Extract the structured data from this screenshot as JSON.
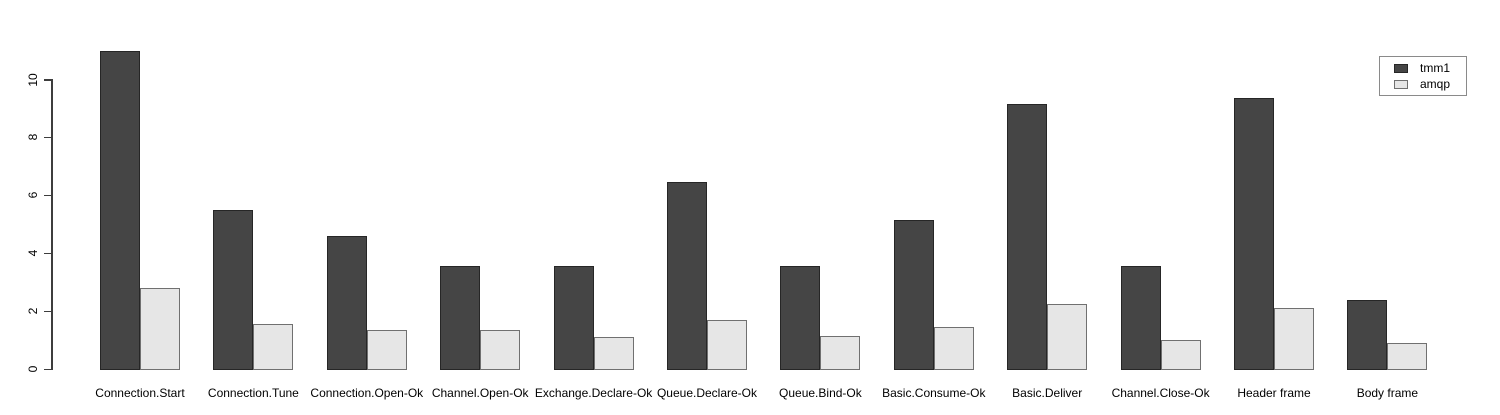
{
  "chart_data": {
    "type": "bar",
    "title": "",
    "xlabel": "",
    "ylabel": "",
    "categories": [
      "Connection.Start",
      "Connection.Tune",
      "Connection.Open-Ok",
      "Channel.Open-Ok",
      "Exchange.Declare-Ok",
      "Queue.Declare-Ok",
      "Queue.Bind-Ok",
      "Basic.Consume-Ok",
      "Basic.Deliver",
      "Channel.Close-Ok",
      "Header frame",
      "Body frame"
    ],
    "series": [
      {
        "name": "tmm1",
        "color": "#454545",
        "border_color": "#262626",
        "values": [
          11.0,
          5.5,
          4.6,
          3.55,
          3.55,
          6.45,
          3.55,
          5.15,
          9.15,
          3.55,
          9.35,
          2.4
        ]
      },
      {
        "name": "amqp",
        "color": "#e6e6e6",
        "border_color": "#707070",
        "values": [
          2.8,
          1.55,
          1.35,
          1.35,
          1.1,
          1.7,
          1.15,
          1.45,
          2.25,
          1.0,
          2.1,
          0.9
        ]
      }
    ],
    "ylim": [
      0,
      11.2
    ],
    "yticks": [
      0,
      2,
      4,
      6,
      8,
      10
    ],
    "grid": false,
    "legend_position": "top-right"
  }
}
